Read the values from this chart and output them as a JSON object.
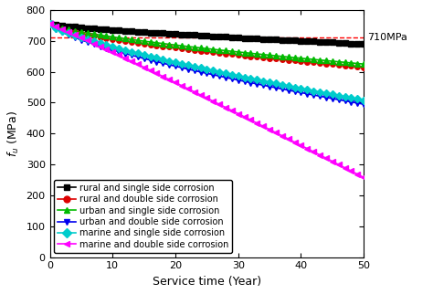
{
  "xlabel": "Service time (Year)",
  "ylabel": "$f_u$ (MPa)",
  "xlim": [
    0,
    50
  ],
  "ylim": [
    0,
    800
  ],
  "yticks": [
    0,
    100,
    200,
    300,
    400,
    500,
    600,
    700,
    800
  ],
  "xticks": [
    0,
    10,
    20,
    30,
    40,
    50
  ],
  "ref_line_y": 710,
  "ref_line_label": "710MPa",
  "series": [
    {
      "label": "rural and single side corrosion",
      "color": "#000000",
      "marker": "s",
      "f0": 755,
      "fend": 690,
      "alpha": 0.75
    },
    {
      "label": "rural and double side corrosion",
      "color": "#dd0000",
      "marker": "o",
      "f0": 755,
      "fend": 615,
      "alpha": 0.65
    },
    {
      "label": "urban and single side corrosion",
      "color": "#00bb00",
      "marker": "^",
      "f0": 755,
      "fend": 625,
      "alpha": 0.7
    },
    {
      "label": "urban and double side corrosion",
      "color": "#0000ee",
      "marker": "v",
      "f0": 755,
      "fend": 495,
      "alpha": 0.7
    },
    {
      "label": "marine and single side corrosion",
      "color": "#00cccc",
      "marker": "D",
      "f0": 755,
      "fend": 508,
      "alpha": 0.75
    },
    {
      "label": "marine and double side corrosion",
      "color": "#ff00ff",
      "marker": "<",
      "f0": 755,
      "fend": 258,
      "alpha": 1.05
    }
  ],
  "marker_interval": 1,
  "linewidth": 1.2,
  "markersize": 4,
  "legend_fontsize": 7.0,
  "axis_fontsize": 9,
  "tick_fontsize": 8
}
